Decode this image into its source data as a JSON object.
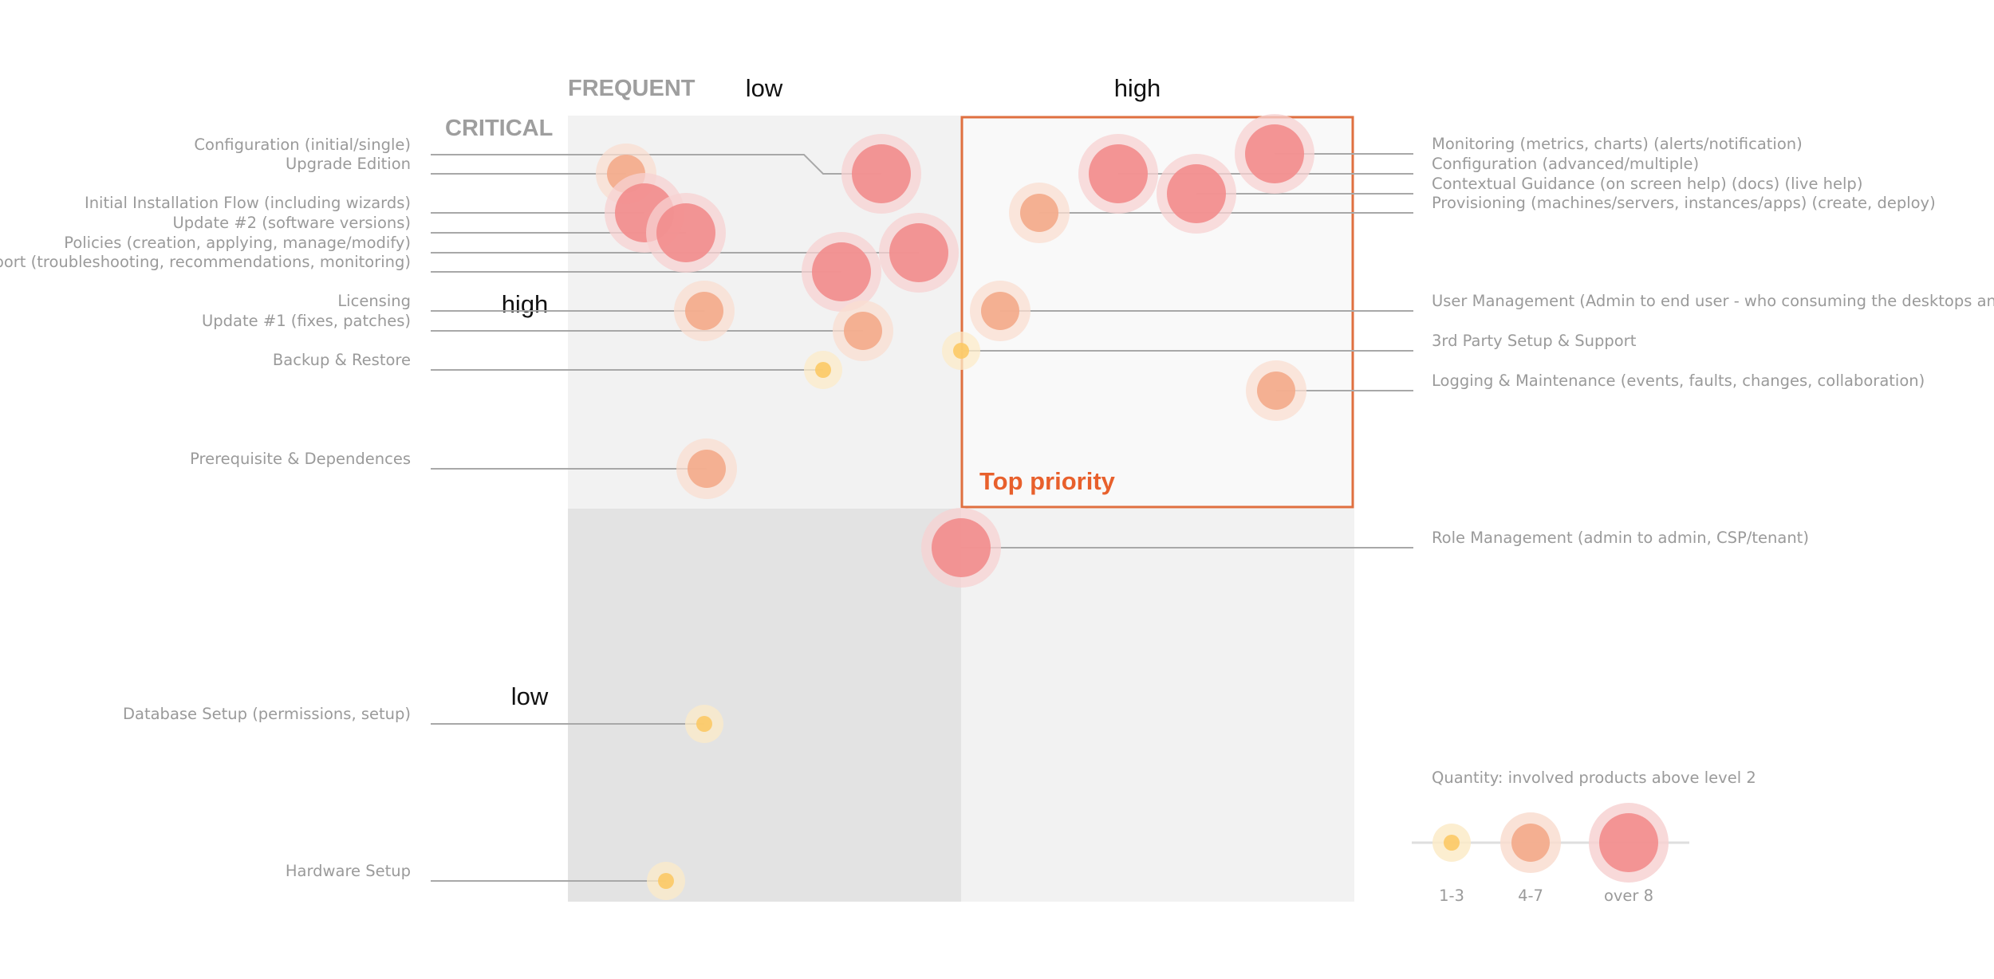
{
  "chart_data": {
    "type": "scatter",
    "x_axis": {
      "title": "FREQUENT",
      "levels": [
        "low",
        "high"
      ]
    },
    "y_axis": {
      "title": "CRITICAL",
      "levels": [
        "high",
        "low"
      ]
    },
    "highlight_label": "Top priority",
    "size_legend": {
      "title": "Quantity: involved products above level 2",
      "items": [
        {
          "label": "1-3",
          "size": "small"
        },
        {
          "label": "4-7",
          "size": "medium"
        },
        {
          "label": "over 8",
          "size": "large"
        }
      ]
    },
    "points": [
      {
        "label": "Configuration (initial/single)",
        "frequency": 0.8,
        "criticality": 0.85,
        "size": "large",
        "side": "left"
      },
      {
        "label": "Upgrade Edition",
        "frequency": 0.15,
        "criticality": 0.85,
        "size": "medium",
        "side": "left"
      },
      {
        "label": "Initial Installation Flow (including wizards)",
        "frequency": 0.2,
        "criticality": 0.8,
        "size": "large",
        "side": "left"
      },
      {
        "label": "Update #2 (software versions)",
        "frequency": 0.3,
        "criticality": 0.775,
        "size": "large",
        "side": "left"
      },
      {
        "label": "Policies (creation, applying, manage/modify)",
        "frequency": 0.89,
        "criticality": 0.73,
        "size": "large",
        "side": "left"
      },
      {
        "label": "Support (troubleshooting, recommendations, monitoring)",
        "frequency": 0.7,
        "criticality": 0.7,
        "size": "large",
        "side": "left"
      },
      {
        "label": "Licensing",
        "frequency": 0.35,
        "criticality": 0.6,
        "size": "medium",
        "side": "left"
      },
      {
        "label": "Update #1 (fixes, patches)",
        "frequency": 0.75,
        "criticality": 0.55,
        "size": "medium",
        "side": "left"
      },
      {
        "label": "Backup & Restore",
        "frequency": 0.65,
        "criticality": 0.5,
        "size": "small",
        "side": "left"
      },
      {
        "label": "Prerequisite & Dependences",
        "frequency": 0.355,
        "criticality": 0.35,
        "size": "medium",
        "side": "left"
      },
      {
        "label": "Database Setup (permissions, setup)",
        "frequency": 0.35,
        "criticality": 0.45,
        "size": "small",
        "side": "left"
      },
      {
        "label": "Hardware Setup",
        "frequency": 0.25,
        "criticality": 0.05,
        "size": "small",
        "side": "left"
      },
      {
        "label": "Monitoring (metrics, charts) (alerts/notification)",
        "frequency": 0.8,
        "criticality": 0.9,
        "size": "large",
        "side": "right"
      },
      {
        "label": "Configuration (advanced/multiple)",
        "frequency": 0.4,
        "criticality": 0.85,
        "size": "large",
        "side": "right"
      },
      {
        "label": "Contextual Guidance  (on screen help) (docs) (live help)",
        "frequency": 0.6,
        "criticality": 0.8,
        "size": "large",
        "side": "right"
      },
      {
        "label": "Provisioning (machines/servers, instances/apps) (create, deploy)",
        "frequency": 0.2,
        "criticality": 0.75,
        "size": "medium",
        "side": "right"
      },
      {
        "label": "User Management (Admin to end user - who consuming the desktops and apps)",
        "frequency": 0.1,
        "criticality": 0.5,
        "size": "medium",
        "side": "right"
      },
      {
        "label": "3rd Party Setup & Support",
        "frequency": 0.0,
        "criticality": 0.4,
        "size": "small",
        "side": "right"
      },
      {
        "label": "Logging & Maintenance (events, faults, changes, collaboration)",
        "frequency": 0.8,
        "criticality": 0.3,
        "size": "medium",
        "side": "right"
      },
      {
        "label": "Role Management (admin to admin, CSP/tenant)",
        "frequency": 0.0,
        "criticality": 0.9,
        "size": "large",
        "side": "right"
      }
    ]
  }
}
